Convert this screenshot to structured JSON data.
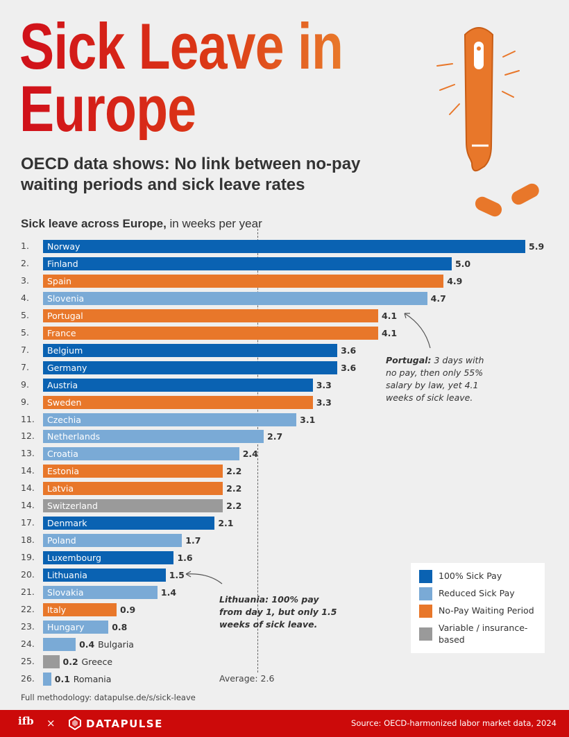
{
  "header": {
    "title": "Sick Leave in Europe",
    "subtitle": "OECD data shows: No link between no-pay waiting periods and sick leave rates"
  },
  "chart_data": {
    "type": "bar",
    "orientation": "horizontal",
    "title_bold": "Sick leave across Europe,",
    "title_rest": " in weeks per year",
    "unit": "weeks per year",
    "average": 2.6,
    "average_label": "Average: 2.6",
    "xlim": [
      0,
      5.9
    ],
    "colors": {
      "full": "#0a62b2",
      "reduced": "#7aaad6",
      "nopay": "#e8772a",
      "variable": "#9a9a9a"
    },
    "legend": [
      {
        "key": "full",
        "label": "100% Sick Pay"
      },
      {
        "key": "reduced",
        "label": "Reduced Sick Pay"
      },
      {
        "key": "nopay",
        "label": "No-Pay Waiting Period"
      },
      {
        "key": "variable",
        "label": "Variable / insurance-based"
      }
    ],
    "legend_placement": "bottom-right",
    "rows": [
      {
        "rank": "1.",
        "country": "Norway",
        "value": 5.9,
        "value_label": "5.9",
        "type": "full"
      },
      {
        "rank": "2.",
        "country": "Finland",
        "value": 5.0,
        "value_label": "5.0",
        "type": "full"
      },
      {
        "rank": "3.",
        "country": "Spain",
        "value": 4.9,
        "value_label": "4.9",
        "type": "nopay"
      },
      {
        "rank": "4.",
        "country": "Slovenia",
        "value": 4.7,
        "value_label": "4.7",
        "type": "reduced"
      },
      {
        "rank": "5.",
        "country": "Portugal",
        "value": 4.1,
        "value_label": "4.1",
        "type": "nopay"
      },
      {
        "rank": "5.",
        "country": "France",
        "value": 4.1,
        "value_label": "4.1",
        "type": "nopay"
      },
      {
        "rank": "7.",
        "country": "Belgium",
        "value": 3.6,
        "value_label": "3.6",
        "type": "full"
      },
      {
        "rank": "7.",
        "country": "Germany",
        "value": 3.6,
        "value_label": "3.6",
        "type": "full"
      },
      {
        "rank": "9.",
        "country": "Austria",
        "value": 3.3,
        "value_label": "3.3",
        "type": "full"
      },
      {
        "rank": "9.",
        "country": "Sweden",
        "value": 3.3,
        "value_label": "3.3",
        "type": "nopay"
      },
      {
        "rank": "11.",
        "country": "Czechia",
        "value": 3.1,
        "value_label": "3.1",
        "type": "reduced"
      },
      {
        "rank": "12.",
        "country": "Netherlands",
        "value": 2.7,
        "value_label": "2.7",
        "type": "reduced"
      },
      {
        "rank": "13.",
        "country": "Croatia",
        "value": 2.4,
        "value_label": "2.4",
        "type": "reduced"
      },
      {
        "rank": "14.",
        "country": "Estonia",
        "value": 2.2,
        "value_label": "2.2",
        "type": "nopay"
      },
      {
        "rank": "14.",
        "country": "Latvia",
        "value": 2.2,
        "value_label": "2.2",
        "type": "nopay"
      },
      {
        "rank": "14.",
        "country": "Switzerland",
        "value": 2.2,
        "value_label": "2.2",
        "type": "variable"
      },
      {
        "rank": "17.",
        "country": "Denmark",
        "value": 2.1,
        "value_label": "2.1",
        "type": "full"
      },
      {
        "rank": "18.",
        "country": "Poland",
        "value": 1.7,
        "value_label": "1.7",
        "type": "reduced"
      },
      {
        "rank": "19.",
        "country": "Luxembourg",
        "value": 1.6,
        "value_label": "1.6",
        "type": "full"
      },
      {
        "rank": "20.",
        "country": "Lithuania",
        "value": 1.5,
        "value_label": "1.5",
        "type": "full"
      },
      {
        "rank": "21.",
        "country": "Slovakia",
        "value": 1.4,
        "value_label": "1.4",
        "type": "reduced"
      },
      {
        "rank": "22.",
        "country": "Italy",
        "value": 0.9,
        "value_label": "0.9",
        "type": "nopay"
      },
      {
        "rank": "23.",
        "country": "Hungary",
        "value": 0.8,
        "value_label": "0.8",
        "type": "reduced"
      },
      {
        "rank": "24.",
        "country": "Bulgaria",
        "value": 0.4,
        "value_label": "0.4",
        "type": "reduced"
      },
      {
        "rank": "25.",
        "country": "Greece",
        "value": 0.2,
        "value_label": "0.2",
        "type": "variable"
      },
      {
        "rank": "26.",
        "country": "Romania",
        "value": 0.1,
        "value_label": "0.1",
        "type": "reduced"
      }
    ],
    "annotations": [
      {
        "target": "Portugal",
        "bold": "Portugal:",
        "text": " 3 days with no pay, then only 55% salary by law, yet 4.1 weeks of sick leave."
      },
      {
        "target": "Lithuania",
        "bold": "Lithuania: 100% pay from day 1, but only 1.5 weeks of sick leave.",
        "text": ""
      }
    ]
  },
  "footer": {
    "methodology": "Full methodology: datapulse.de/s/sick-leave",
    "logo_ifb": "ifb",
    "separator": "×",
    "brand": "DATAPULSE",
    "source": "Source: OECD-harmonized labor market data, 2024"
  }
}
